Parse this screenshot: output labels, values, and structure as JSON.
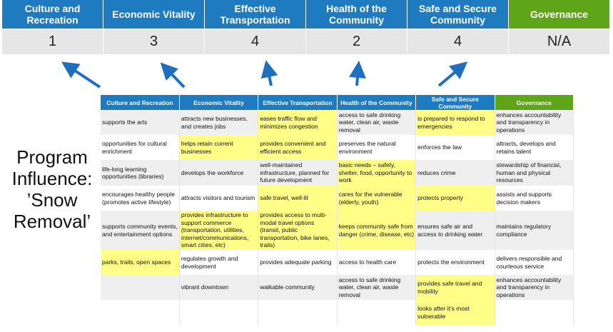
{
  "summary": {
    "headers": [
      "Culture and Recreation",
      "Economic Vitality",
      "Effective Transportation",
      "Health of the Community",
      "Safe and Secure Community",
      "Governance"
    ],
    "scores": [
      "1",
      "3",
      "4",
      "2",
      "4",
      "N/A"
    ]
  },
  "colors": {
    "header_blue": "#1f7bbf",
    "governance_green": "#5ea51a",
    "highlight": "#ffff88"
  },
  "program_label": "Program Influence: ’Snow Removal’",
  "table": {
    "headers": [
      "Culture and Recreation",
      "Economic Vitality",
      "Effective Transportation",
      "Health of the Community",
      "Safe and Secure Community",
      "Governance"
    ],
    "rows": [
      [
        "supports the arts",
        "attracts new businesses, and creates jobs",
        "eases traffic flow and minimizes congestion",
        "access to safe drinking water, clean air, waste removal",
        "is prepared to respond to emergencies",
        "enhances accountability and transparency in operations"
      ],
      [
        "opportunities for cultural enrichment",
        "helps retain current businesses",
        "provides convenient and efficient access",
        "preserves the natural environment",
        "enforces the law",
        "attracts, develops and retains talent"
      ],
      [
        "life-long learning opportunities (libraries)",
        "develops the workforce",
        "well-maintained infrastructure, planned for future development",
        "basic needs – safety, shelter, food, opportunity to work",
        "reduces crime",
        "stewardship of financial, human and physical resources"
      ],
      [
        "encourages healthy people (promotes active lifestyle)",
        "attracts visitors and tourism",
        "safe travel, well-lit",
        "cares for the vulnerable (elderly, youth)",
        "protects property",
        "assists and supports decision makers"
      ],
      [
        "supports community events, and entertainment options",
        "provides infrastructure to support commerce (transportation, utilities, internet/communications, smart cities, etc)",
        "provides access to multi-modal travel options (transit, public transportation, bike lanes, trails)",
        "keeps community safe from danger (crime, disease, etc)",
        "ensures safe air and access to drinking water",
        "maintains regulatory compliance"
      ],
      [
        "parks, trails, open spaces",
        "regulates growth and development",
        "provides adequate parking",
        "access to health care",
        "protects the environment",
        "delivers responsible and courteous service"
      ],
      [
        "",
        "vibrant downtown",
        "walkable community",
        "access to safe drinking water, clean air, waste removal",
        "provides safe travel and mobility",
        "enhances accountability and transparency in operations"
      ],
      [
        "",
        "",
        "",
        "",
        "looks after it’s most vulnerable",
        ""
      ]
    ],
    "highlighted": [
      [
        2,
        4
      ],
      [
        1,
        2
      ],
      [
        3
      ],
      [
        2,
        3,
        4
      ],
      [
        1,
        2,
        3
      ],
      [
        0
      ],
      [
        4
      ],
      [
        4
      ]
    ]
  }
}
